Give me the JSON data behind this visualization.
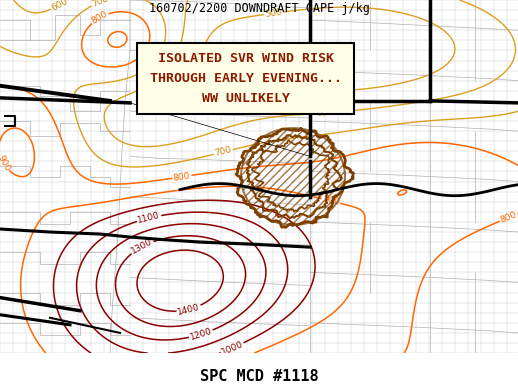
{
  "title_top": "160702/2200 DOWNDRAFT CAPE j/kg",
  "title_bottom": "SPC MCD #1118",
  "box_line1": "ISOLATED SVR WIND RISK",
  "box_line2": "THROUGH EARLY EVENING...",
  "box_line3": "WW UNLIKELY",
  "bg_color": "#ffffff",
  "grid_color": "#c8c8c8",
  "state_color": "#b0b0b0",
  "dark_red": "#8B0000",
  "orange1": "#FF6600",
  "orange2": "#CC8800",
  "brown": "#7B3F00",
  "fig_width": 5.18,
  "fig_height": 3.88,
  "dpi": 100
}
